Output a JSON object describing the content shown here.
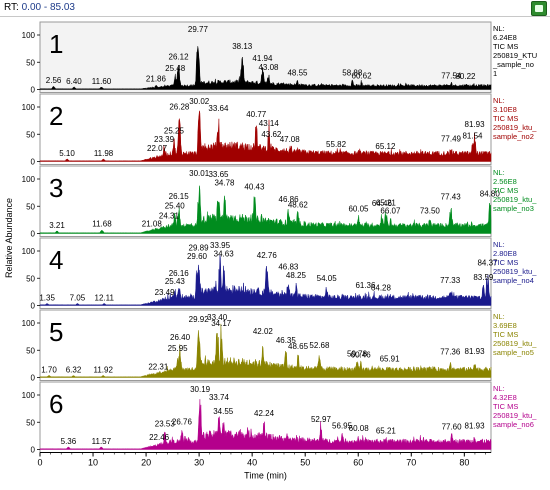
{
  "rt_label": "RT:",
  "rt_range": "0.00 - 85.03",
  "colors": {
    "accent": "#1d3b8a",
    "button": "#2e8b2e"
  },
  "icon_names": {
    "export": "export-icon"
  },
  "chart_data": {
    "type": "line",
    "xlabel": "Time (min)",
    "ylabel": "Relative Abundance",
    "xlim": [
      0,
      85.03
    ],
    "xticks": [
      0,
      10,
      20,
      30,
      40,
      50,
      60,
      70,
      80
    ],
    "yticks": [
      0,
      50,
      100
    ],
    "grid": false,
    "series": [
      {
        "panel": "1",
        "color": "#000000",
        "info": [
          "NL:",
          "6.24E8",
          "TIC  MS",
          "250819_KTU",
          "_sample_no",
          "1"
        ],
        "peaks": [
          [
            2.56,
            6
          ],
          [
            6.4,
            5
          ],
          [
            11.6,
            5
          ],
          [
            21.86,
            9
          ],
          [
            25.48,
            28
          ],
          [
            26.12,
            50
          ],
          [
            29.77,
            100
          ],
          [
            38.13,
            69
          ],
          [
            41.94,
            47
          ],
          [
            43.08,
            30
          ],
          [
            48.55,
            20
          ],
          [
            58.88,
            20
          ],
          [
            60.62,
            15
          ],
          [
            77.54,
            15
          ],
          [
            80.22,
            14
          ]
        ],
        "labels": [
          [
            2.56,
            "2.56",
            6
          ],
          [
            6.4,
            "6.40",
            5
          ],
          [
            11.6,
            "11.60",
            5
          ],
          [
            21.86,
            "21.86",
            9
          ],
          [
            25.48,
            "25.48",
            28
          ],
          [
            26.12,
            "26.12",
            50
          ],
          [
            29.77,
            "29.77",
            100
          ],
          [
            38.13,
            "38.13",
            69
          ],
          [
            41.94,
            "41.94",
            47
          ],
          [
            43.08,
            "43.08",
            30
          ],
          [
            48.55,
            "48.55",
            20
          ],
          [
            58.88,
            "58.88",
            20
          ],
          [
            60.62,
            "60.62",
            15
          ],
          [
            77.54,
            "77.54",
            15
          ],
          [
            80.22,
            "80.22",
            14
          ]
        ]
      },
      {
        "panel": "2",
        "color": "#a00000",
        "info": [
          "NL:",
          "3.10E8",
          "TIC  MS",
          "250819_ktu_",
          "sample_no2"
        ],
        "peaks": [
          [
            5.1,
            5
          ],
          [
            11.98,
            5
          ],
          [
            22.07,
            14
          ],
          [
            23.39,
            30
          ],
          [
            25.25,
            46
          ],
          [
            26.28,
            90
          ],
          [
            30.02,
            100
          ],
          [
            33.64,
            87
          ],
          [
            40.77,
            76
          ],
          [
            43.14,
            60
          ],
          [
            43.62,
            39
          ],
          [
            47.08,
            30
          ],
          [
            55.82,
            21
          ],
          [
            65.12,
            17
          ],
          [
            77.49,
            31
          ],
          [
            81.54,
            37
          ],
          [
            81.93,
            58
          ]
        ],
        "labels": [
          [
            5.1,
            "5.10",
            5
          ],
          [
            11.98,
            "11.98",
            5
          ],
          [
            22.07,
            "22.07",
            14
          ],
          [
            23.39,
            "23.39",
            30
          ],
          [
            25.25,
            "25.25",
            46
          ],
          [
            26.28,
            "26.28",
            90
          ],
          [
            30.02,
            "30.02",
            100
          ],
          [
            33.64,
            "33.64",
            87
          ],
          [
            40.77,
            "40.77",
            76
          ],
          [
            43.14,
            "43.14",
            60
          ],
          [
            43.62,
            "43.62",
            39
          ],
          [
            47.08,
            "47.08",
            30
          ],
          [
            55.82,
            "55.82",
            21
          ],
          [
            65.12,
            "65.12",
            17
          ],
          [
            77.49,
            "77.49",
            31
          ],
          [
            81.54,
            "81.54",
            37
          ],
          [
            81.93,
            "81.93",
            58
          ]
        ]
      },
      {
        "panel": "3",
        "color": "#008c1e",
        "info": [
          "NL:",
          "2.56E8",
          "TIC  MS",
          "250819_ktu_",
          "sample_no3"
        ],
        "peaks": [
          [
            3.21,
            5
          ],
          [
            11.68,
            7
          ],
          [
            21.08,
            7
          ],
          [
            24.31,
            22
          ],
          [
            25.4,
            40
          ],
          [
            26.15,
            58
          ],
          [
            30.01,
            100
          ],
          [
            33.65,
            98
          ],
          [
            34.78,
            83
          ],
          [
            40.43,
            75
          ],
          [
            46.86,
            52
          ],
          [
            48.62,
            42
          ],
          [
            60.05,
            35
          ],
          [
            64.46,
            45
          ],
          [
            65.21,
            46
          ],
          [
            66.07,
            31
          ],
          [
            73.5,
            31
          ],
          [
            77.43,
            57
          ],
          [
            84.8,
            62
          ]
        ],
        "labels": [
          [
            3.21,
            "3.21",
            5
          ],
          [
            11.68,
            "11.68",
            7
          ],
          [
            21.08,
            "21.08",
            7
          ],
          [
            24.31,
            "24.31",
            22
          ],
          [
            25.4,
            "25.40",
            40
          ],
          [
            26.15,
            "26.15",
            58
          ],
          [
            30.01,
            "30.01",
            100
          ],
          [
            33.65,
            "33.65",
            98
          ],
          [
            34.78,
            "34.78",
            83
          ],
          [
            40.43,
            "40.43",
            75
          ],
          [
            46.86,
            "46.86",
            52
          ],
          [
            48.62,
            "48.62",
            42
          ],
          [
            60.05,
            "60.05",
            35
          ],
          [
            64.46,
            "64.46",
            45
          ],
          [
            65.21,
            "65.21",
            46
          ],
          [
            66.07,
            "66.07",
            31
          ],
          [
            73.5,
            "73.50",
            31
          ],
          [
            77.43,
            "77.43",
            57
          ],
          [
            84.8,
            "84.80",
            62
          ]
        ]
      },
      {
        "panel": "4",
        "color": "#1a1a8c",
        "info": [
          "NL:",
          "2.80E8",
          "TIC  MS",
          "250819_ktu_",
          "sample_no4"
        ],
        "peaks": [
          [
            1.35,
            4
          ],
          [
            7.05,
            4
          ],
          [
            12.11,
            4
          ],
          [
            23.49,
            14
          ],
          [
            25.43,
            34
          ],
          [
            26.16,
            49
          ],
          [
            29.6,
            80
          ],
          [
            29.89,
            95
          ],
          [
            33.95,
            100
          ],
          [
            34.63,
            84
          ],
          [
            42.76,
            82
          ],
          [
            46.83,
            61
          ],
          [
            48.25,
            45
          ],
          [
            54.05,
            39
          ],
          [
            61.36,
            27
          ],
          [
            64.28,
            22
          ],
          [
            77.33,
            36
          ],
          [
            83.59,
            41
          ],
          [
            84.37,
            68
          ]
        ],
        "labels": [
          [
            1.35,
            "1.35",
            4
          ],
          [
            7.05,
            "7.05",
            4
          ],
          [
            12.11,
            "12.11",
            4
          ],
          [
            23.49,
            "23.49",
            14
          ],
          [
            25.43,
            "25.43",
            34
          ],
          [
            26.16,
            "26.16",
            49
          ],
          [
            29.6,
            "29.60",
            80
          ],
          [
            29.89,
            "29.89",
            95
          ],
          [
            33.95,
            "33.95",
            100
          ],
          [
            34.63,
            "34.63",
            84
          ],
          [
            42.76,
            "42.76",
            82
          ],
          [
            46.83,
            "46.83",
            61
          ],
          [
            48.25,
            "48.25",
            45
          ],
          [
            54.05,
            "54.05",
            39
          ],
          [
            61.36,
            "61.36",
            27
          ],
          [
            64.28,
            "64.28",
            22
          ],
          [
            77.33,
            "77.33",
            36
          ],
          [
            83.59,
            "83.59",
            41
          ],
          [
            84.37,
            "84.37",
            68
          ]
        ]
      },
      {
        "panel": "5",
        "color": "#8a8400",
        "info": [
          "NL:",
          "3.69E8",
          "TIC  MS",
          "250819_ktu_",
          "sample_no5"
        ],
        "peaks": [
          [
            1.7,
            4
          ],
          [
            6.32,
            4
          ],
          [
            11.92,
            4
          ],
          [
            22.31,
            9
          ],
          [
            25.95,
            43
          ],
          [
            26.4,
            63
          ],
          [
            29.92,
            96
          ],
          [
            33.4,
            100
          ],
          [
            34.17,
            89
          ],
          [
            42.02,
            74
          ],
          [
            46.35,
            58
          ],
          [
            48.65,
            47
          ],
          [
            52.68,
            49
          ],
          [
            59.78,
            33
          ],
          [
            60.46,
            31
          ],
          [
            65.91,
            24
          ],
          [
            77.36,
            37
          ],
          [
            81.93,
            38
          ]
        ],
        "labels": [
          [
            1.7,
            "1.70",
            4
          ],
          [
            6.32,
            "6.32",
            4
          ],
          [
            11.92,
            "11.92",
            4
          ],
          [
            22.31,
            "22.31",
            9
          ],
          [
            25.95,
            "25.95",
            43
          ],
          [
            26.4,
            "26.40",
            63
          ],
          [
            29.92,
            "29.92",
            96
          ],
          [
            33.4,
            "33.40",
            100
          ],
          [
            34.17,
            "34.17",
            89
          ],
          [
            42.02,
            "42.02",
            74
          ],
          [
            46.35,
            "46.35",
            58
          ],
          [
            48.65,
            "48.65",
            47
          ],
          [
            52.68,
            "52.68",
            49
          ],
          [
            59.78,
            "59.78",
            33
          ],
          [
            60.46,
            "60.46",
            31
          ],
          [
            65.91,
            "65.91",
            24
          ],
          [
            77.36,
            "77.36",
            37
          ],
          [
            81.93,
            "81.93",
            38
          ]
        ]
      },
      {
        "panel": "6",
        "color": "#b4008c",
        "info": [
          "NL:",
          "4.32E8",
          "TIC  MS",
          "250819_ktu_",
          "sample_no6"
        ],
        "peaks": [
          [
            5.36,
            5
          ],
          [
            11.57,
            5
          ],
          [
            22.46,
            12
          ],
          [
            23.53,
            37
          ],
          [
            26.76,
            40
          ],
          [
            30.19,
            100
          ],
          [
            33.74,
            85
          ],
          [
            34.55,
            60
          ],
          [
            42.24,
            56
          ],
          [
            52.97,
            45
          ],
          [
            56.95,
            33
          ],
          [
            60.08,
            28
          ],
          [
            65.21,
            24
          ],
          [
            77.6,
            31
          ],
          [
            81.93,
            33
          ]
        ],
        "labels": [
          [
            5.36,
            "5.36",
            5
          ],
          [
            11.57,
            "11.57",
            5
          ],
          [
            22.46,
            "22.46",
            12
          ],
          [
            23.53,
            "23.53",
            37
          ],
          [
            26.76,
            "26.76",
            40
          ],
          [
            30.19,
            "30.19",
            100
          ],
          [
            33.74,
            "33.74",
            85
          ],
          [
            34.55,
            "34.55",
            60
          ],
          [
            42.24,
            "42.24",
            56
          ],
          [
            52.97,
            "52.97",
            45
          ],
          [
            56.95,
            "56.95",
            33
          ],
          [
            60.08,
            "60.08",
            28
          ],
          [
            65.21,
            "65.21",
            24
          ],
          [
            77.6,
            "77.60",
            31
          ],
          [
            81.93,
            "81.93",
            33
          ]
        ]
      }
    ]
  }
}
